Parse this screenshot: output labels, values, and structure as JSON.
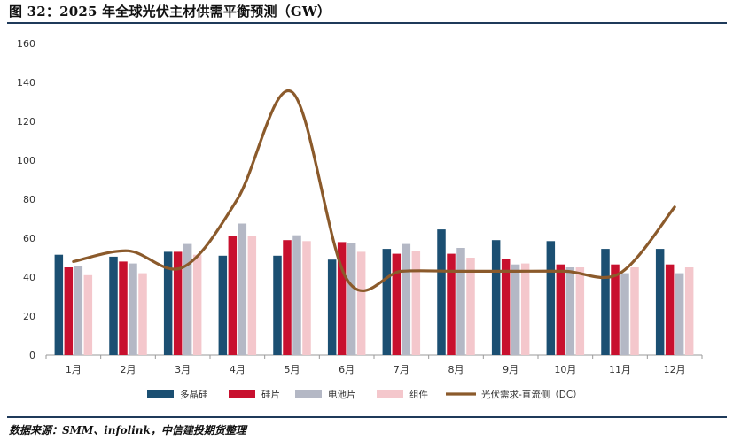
{
  "header": {
    "title": "图 32：2025 年全球光伏主材供需平衡预测（GW）"
  },
  "footer": {
    "source": "数据来源：SMM、infolink，中信建投期货整理"
  },
  "chart_data": {
    "type": "bar",
    "categories": [
      "1月",
      "2月",
      "3月",
      "4月",
      "5月",
      "6月",
      "7月",
      "8月",
      "9月",
      "10月",
      "11月",
      "12月"
    ],
    "ylim": [
      0,
      160
    ],
    "yticks": [
      0,
      20,
      40,
      60,
      80,
      100,
      120,
      140,
      160
    ],
    "grid": false,
    "legend_position": "bottom",
    "series": [
      {
        "name": "多晶硅",
        "kind": "bar",
        "color": "#1b4f72",
        "values": [
          51.5,
          50.5,
          53,
          51,
          51,
          49,
          54.5,
          64.5,
          59,
          58.5,
          54.5,
          54.5
        ]
      },
      {
        "name": "硅片",
        "kind": "bar",
        "color": "#c8102e",
        "values": [
          45,
          48,
          53,
          61,
          59,
          58,
          52,
          52,
          49.5,
          46.5,
          46.5,
          46.5
        ]
      },
      {
        "name": "电池片",
        "kind": "bar",
        "color": "#b4b8c5",
        "values": [
          45.5,
          47,
          57,
          67.5,
          61.5,
          57.5,
          57,
          55,
          46.5,
          45,
          42,
          42
        ]
      },
      {
        "name": "组件",
        "kind": "bar",
        "color": "#f4c7cc",
        "values": [
          41,
          42,
          51.5,
          61,
          58.5,
          53,
          53.5,
          50,
          47,
          45,
          45,
          45
        ]
      },
      {
        "name": "光伏需求-直流侧（DC）",
        "kind": "line",
        "color": "#8b5a2b",
        "values": [
          48,
          53.5,
          45,
          80,
          135,
          39,
          43,
          43,
          43,
          43,
          42,
          76
        ]
      }
    ]
  }
}
